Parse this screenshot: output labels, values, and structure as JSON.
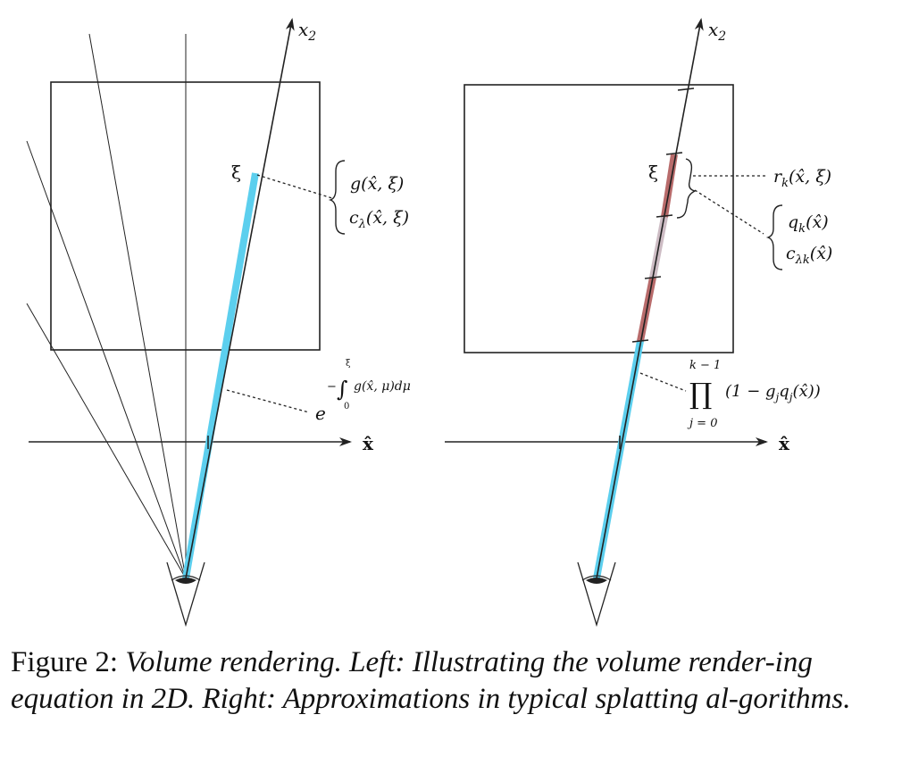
{
  "left_panel": {
    "axis_x_label": "x̂",
    "axis_ray_label": "x",
    "axis_ray_sub": "2",
    "xi_label": "ξ",
    "brace_line1": "g(x̂, ξ)",
    "brace_line2_pre": "c",
    "brace_line2_sub": "λ",
    "brace_line2_post": "(x̂, ξ)",
    "exp_base": "e",
    "exp_minus": "−",
    "exp_integral": "∫",
    "exp_upper": "ξ",
    "exp_lower": "0",
    "exp_integrand": "g(x̂, μ)dμ"
  },
  "right_panel": {
    "axis_x_label": "x̂",
    "axis_ray_label": "x",
    "axis_ray_sub": "2",
    "xi_label": "ξ",
    "r_label_pre": "r",
    "r_label_sub": "k",
    "r_label_post": "(x̂, ξ)",
    "q_label_pre": "q",
    "q_label_sub": "k",
    "q_label_post": "(x̂)",
    "c_label_pre": "c",
    "c_label_sub": "λk",
    "c_label_post": "(x̂)",
    "prod_symbol": "∏",
    "prod_upper": "k − 1",
    "prod_lower": "j = 0",
    "prod_body": "(1 − g",
    "prod_body_sub1": "j",
    "prod_body_mid": "q",
    "prod_body_sub2": "j",
    "prod_body_post": "(x̂))"
  },
  "caption": {
    "label": "Figure 2:",
    "text": "Volume rendering. Left: Illustrating the volume render-ing equation in 2D. Right: Approximations in typical splatting al-gorithms."
  },
  "colors": {
    "ray_blue": "#5ccfee",
    "segment_red": "#b86b6b",
    "segment_pale": "#cdbcc4",
    "line": "#222222"
  }
}
